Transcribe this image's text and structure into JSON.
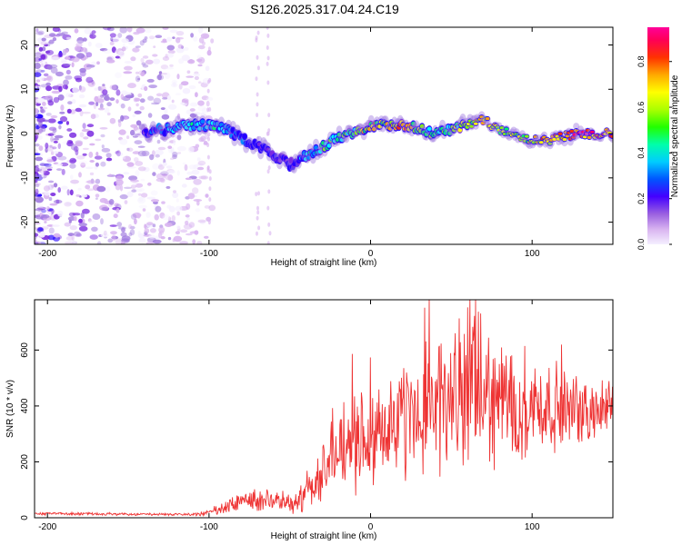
{
  "title": "S126.2025.317.04.24.C19",
  "chart_data": [
    {
      "type": "heatmap",
      "name": "spectrogram",
      "xlabel": "Height of straight line (km)",
      "ylabel": "Frequency (Hz)",
      "xlim": [
        -208,
        150
      ],
      "ylim": [
        -25,
        24
      ],
      "xticks": [
        -200,
        -100,
        0,
        100
      ],
      "yticks": [
        -20,
        -10,
        0,
        10,
        20
      ],
      "colorbar": {
        "label": "Normalized spectral amplitude",
        "range": [
          0,
          0.95
        ],
        "ticks": [
          "0.0",
          "0.2",
          "0.4",
          "0.6",
          "0.8"
        ],
        "colormap": [
          "#f5f0ff",
          "#d8b3f0",
          "#a07ae0",
          "#7a2be0",
          "#2200ff",
          "#0088ff",
          "#00ffff",
          "#00ff66",
          "#88ff00",
          "#ffff00",
          "#ffaa00",
          "#ff3300",
          "#ff0066",
          "#ff0099"
        ]
      },
      "ridge": {
        "x": [
          -140,
          -125,
          -110,
          -100,
          -90,
          -80,
          -70,
          -60,
          -50,
          -40,
          -30,
          -20,
          -10,
          0,
          10,
          20,
          30,
          40,
          50,
          60,
          70,
          80,
          90,
          100,
          110,
          120,
          130,
          140,
          150
        ],
        "y": [
          0.5,
          1,
          2,
          2,
          1,
          -1,
          -3,
          -5,
          -7,
          -5,
          -3,
          -1,
          0.5,
          1.5,
          2,
          2,
          1,
          0,
          1,
          2,
          3,
          1,
          0,
          -1.5,
          -1.5,
          -0.5,
          0,
          0,
          0
        ],
        "intensity": [
          0.3,
          0.45,
          0.5,
          0.5,
          0.4,
          0.35,
          0.3,
          0.3,
          0.3,
          0.45,
          0.55,
          0.6,
          0.65,
          0.7,
          0.75,
          0.8,
          0.7,
          0.55,
          0.6,
          0.7,
          0.75,
          0.7,
          0.65,
          0.75,
          0.8,
          0.85,
          0.9,
          0.9,
          0.9
        ]
      }
    },
    {
      "type": "line",
      "name": "snr",
      "xlabel": "Height of straight line (km)",
      "ylabel": "SNR (10 * v/v)",
      "xlim": [
        -208,
        150
      ],
      "ylim": [
        0,
        780
      ],
      "xticks": [
        -200,
        -100,
        0,
        100
      ],
      "yticks": [
        0,
        200,
        400,
        600
      ],
      "color": "#ee3333",
      "series": [
        {
          "name": "SNR",
          "x": [
            -208,
            -190,
            -170,
            -150,
            -130,
            -110,
            -100,
            -90,
            -80,
            -70,
            -60,
            -50,
            -40,
            -30,
            -20,
            -10,
            0,
            10,
            20,
            30,
            40,
            50,
            60,
            70,
            80,
            90,
            100,
            110,
            120,
            130,
            140,
            150
          ],
          "values": [
            15,
            15,
            14,
            13,
            12,
            12,
            18,
            35,
            60,
            70,
            55,
            50,
            90,
            170,
            230,
            280,
            300,
            330,
            340,
            380,
            400,
            420,
            460,
            440,
            420,
            410,
            400,
            400,
            390,
            380,
            380,
            400
          ],
          "spread": [
            5,
            5,
            5,
            5,
            5,
            6,
            12,
            30,
            40,
            50,
            35,
            40,
            70,
            110,
            150,
            180,
            180,
            200,
            220,
            240,
            260,
            250,
            280,
            260,
            230,
            210,
            200,
            160,
            140,
            120,
            110,
            100
          ]
        }
      ]
    }
  ]
}
